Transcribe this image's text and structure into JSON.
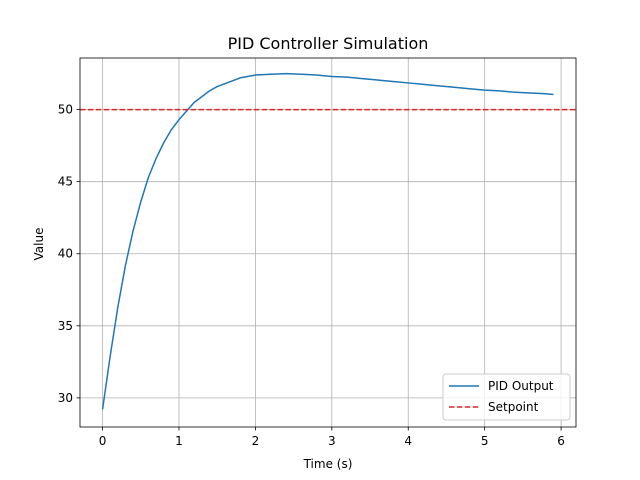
{
  "chart_data": {
    "type": "line",
    "title": "PID Controller Simulation",
    "xlabel": "Time (s)",
    "ylabel": "Value",
    "xlim": [
      -0.295,
      6.195
    ],
    "ylim": [
      27.98,
      53.58
    ],
    "x_ticks": [
      0,
      1,
      2,
      3,
      4,
      5,
      6
    ],
    "y_ticks": [
      30,
      35,
      40,
      45,
      50
    ],
    "grid": true,
    "legend_position": "lower-right",
    "series": [
      {
        "name": "PID Output",
        "color": "#1f77b4",
        "style": "solid",
        "x": [
          0,
          0.1,
          0.2,
          0.3,
          0.4,
          0.5,
          0.6,
          0.7,
          0.8,
          0.9,
          1.0,
          1.1,
          1.2,
          1.3,
          1.4,
          1.5,
          1.6,
          1.8,
          2.0,
          2.2,
          2.4,
          2.6,
          2.8,
          3.0,
          3.2,
          3.4,
          3.6,
          3.8,
          4.0,
          4.2,
          4.4,
          4.6,
          4.8,
          5.0,
          5.2,
          5.4,
          5.6,
          5.8,
          5.9
        ],
        "y": [
          29.2,
          32.9,
          36.3,
          39.2,
          41.6,
          43.6,
          45.3,
          46.6,
          47.7,
          48.6,
          49.3,
          49.9,
          50.5,
          50.9,
          51.3,
          51.6,
          51.8,
          52.2,
          52.4,
          52.45,
          52.5,
          52.45,
          52.4,
          52.3,
          52.25,
          52.15,
          52.05,
          51.95,
          51.85,
          51.75,
          51.65,
          51.55,
          51.45,
          51.35,
          51.3,
          51.2,
          51.15,
          51.1,
          51.05
        ]
      },
      {
        "name": "Setpoint",
        "color": "#d62728",
        "style": "dashed",
        "y_constant": 50
      }
    ]
  }
}
